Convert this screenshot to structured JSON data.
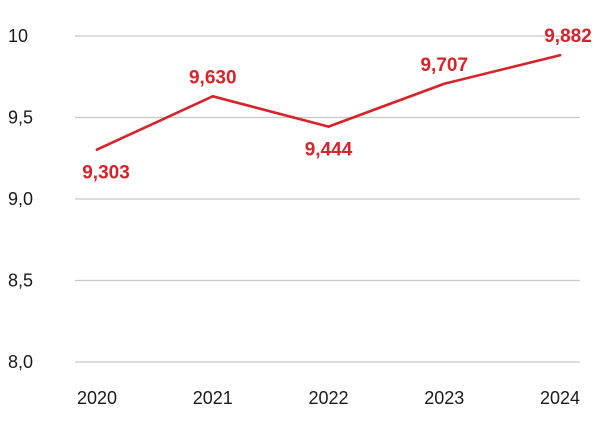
{
  "chart_data": {
    "type": "line",
    "categories": [
      "2020",
      "2021",
      "2022",
      "2023",
      "2024"
    ],
    "series": [
      {
        "values": [
          9.303,
          9.63,
          9.444,
          9.707,
          9.882
        ],
        "labels": [
          "9,303",
          "9,630",
          "9,444",
          "9,707",
          "9,882"
        ]
      }
    ],
    "y_ticks": [
      8.0,
      8.5,
      9.0,
      9.5,
      10
    ],
    "y_tick_labels": [
      "8,0",
      "8,5",
      "9,0",
      "9,5",
      "10"
    ],
    "ylim": [
      8.0,
      10.0
    ],
    "grid": true,
    "colors": {
      "line": "#d7242a",
      "label": "#d7242a",
      "grid": "#c8c8c8",
      "text": "#1a1a1a"
    }
  }
}
